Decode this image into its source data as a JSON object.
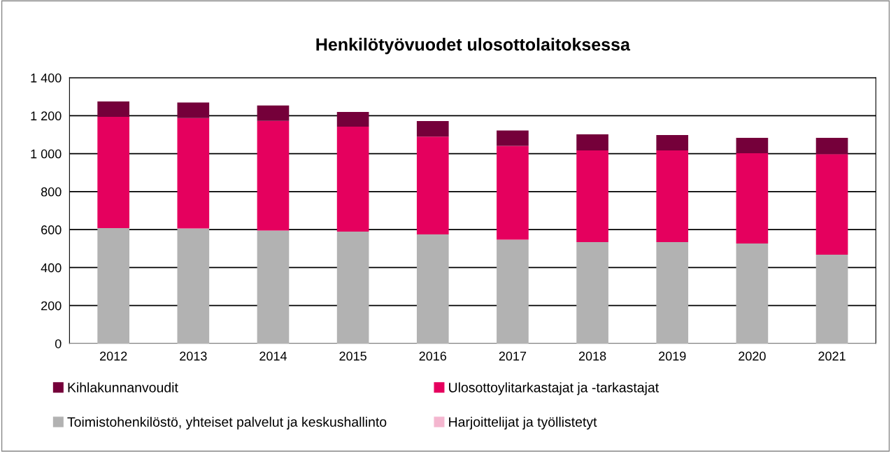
{
  "chart_data": {
    "type": "bar",
    "title": "Henkilötyövuodet ulosottolaitoksessa",
    "categories": [
      "2012",
      "2013",
      "2014",
      "2015",
      "2016",
      "2017",
      "2018",
      "2019",
      "2020",
      "2021"
    ],
    "stacked": true,
    "series": [
      {
        "name": "Harjoittelijat ja työllistetyt",
        "color": "#f4b6cf",
        "values": [
          null,
          null,
          null,
          null,
          null,
          null,
          null,
          null,
          null,
          null
        ]
      },
      {
        "name": "Toimistohenkilöstö, yhteiset palvelut ja keskushallinto",
        "color": "#b2b2b2",
        "values": [
          608,
          606,
          595,
          590,
          575,
          547,
          534,
          534,
          527,
          468
        ]
      },
      {
        "name": "Ulosottoylitarkastajat ja -tarkastajat",
        "color": "#e5005e",
        "values": [
          586,
          582,
          578,
          552,
          515,
          494,
          483,
          483,
          475,
          530
        ]
      },
      {
        "name": "Kihlakunnanvoudit",
        "color": "#75003a",
        "values": [
          81,
          82,
          81,
          78,
          82,
          81,
          85,
          81,
          81,
          85
        ]
      }
    ],
    "ylim": [
      0,
      1400
    ],
    "yticks": [
      0,
      200,
      400,
      600,
      800,
      {
        "value": 1000,
        "label": "1 000"
      },
      {
        "value": 1200,
        "label": "1 200"
      },
      {
        "value": 1400,
        "label": "1 400"
      }
    ],
    "grid": "y",
    "legend": "bottom"
  }
}
